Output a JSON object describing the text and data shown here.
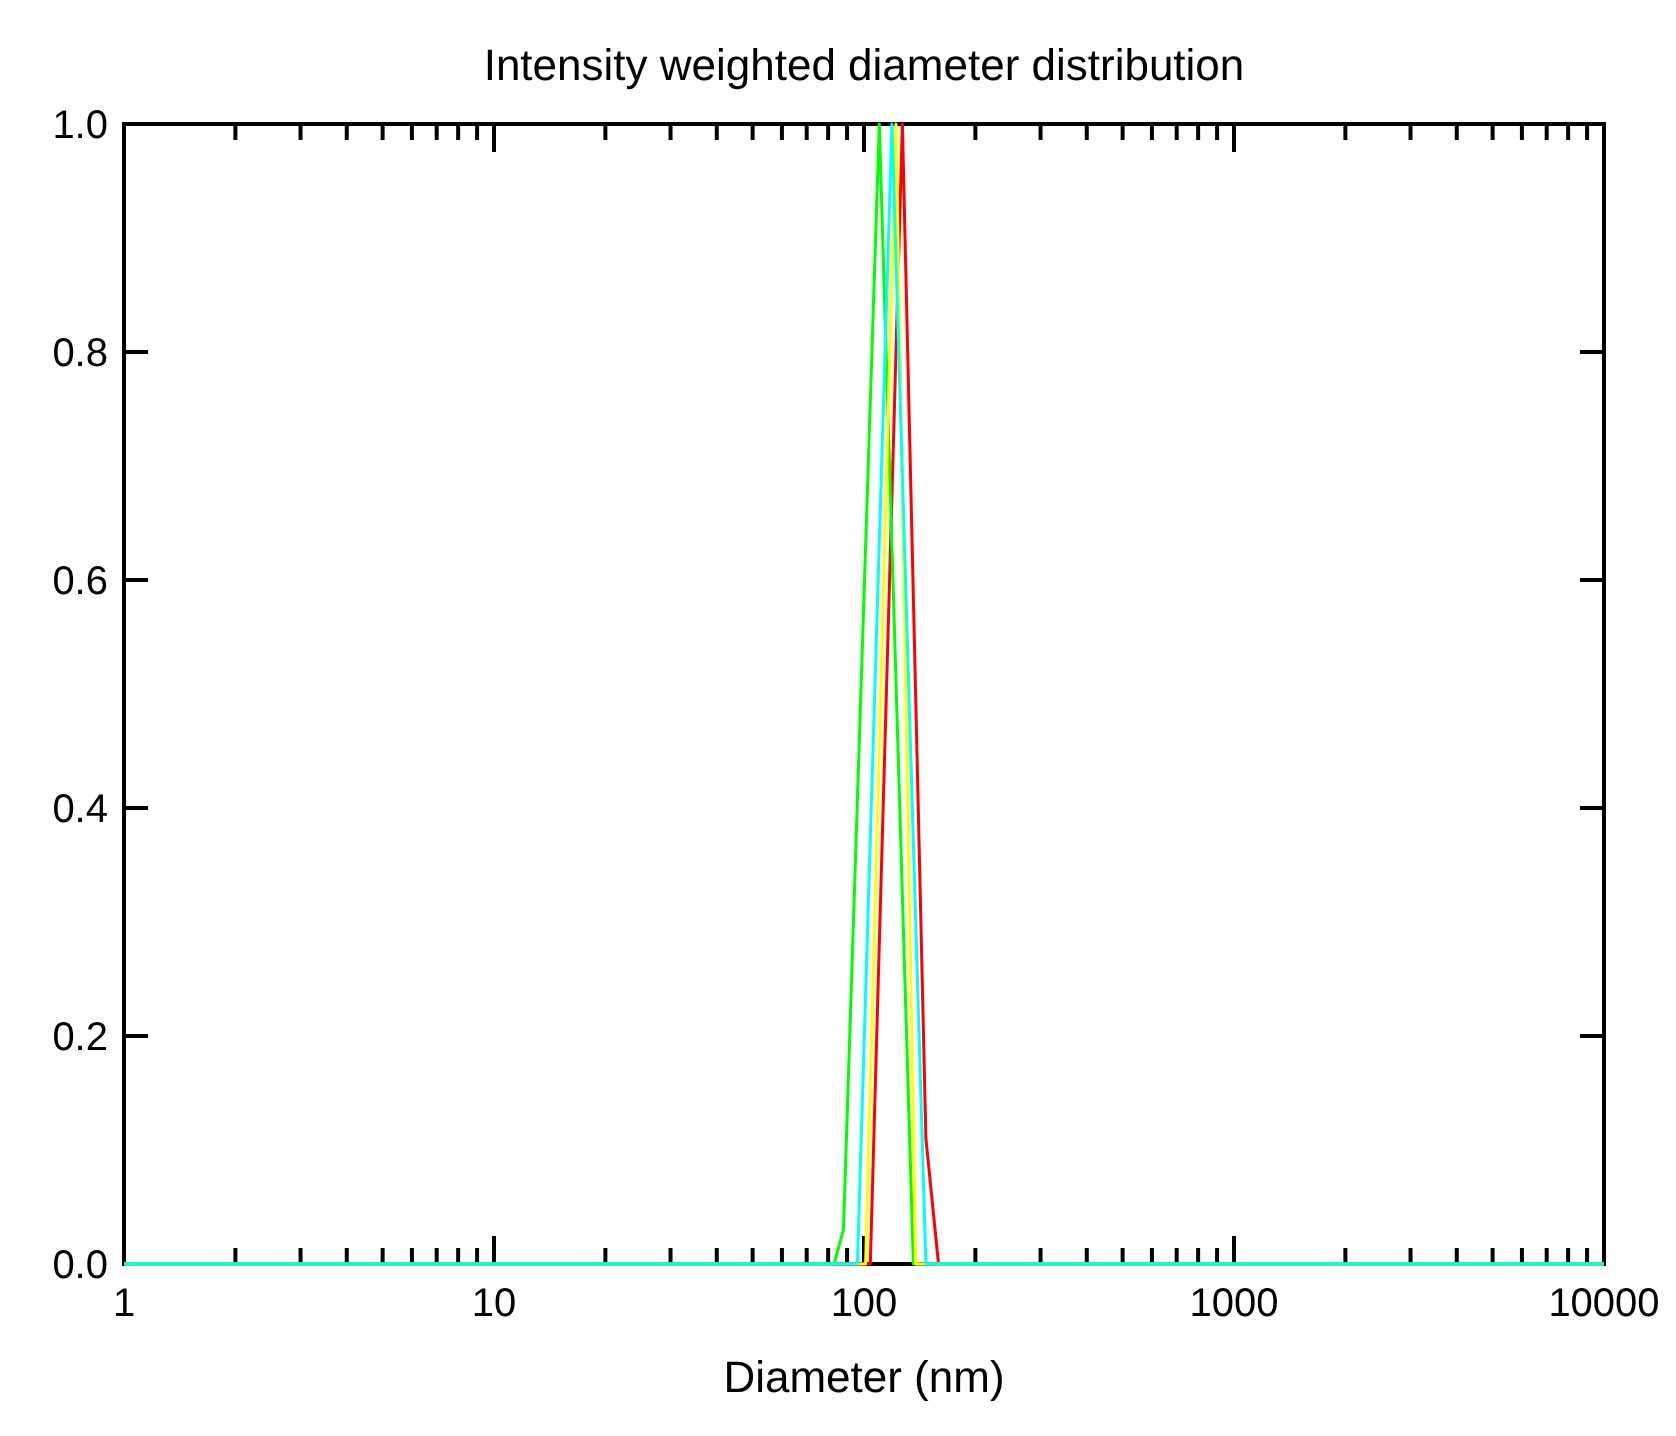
{
  "chart_data": {
    "type": "line",
    "title": "Intensity weighted diameter distribution",
    "xlabel": "Diameter (nm)",
    "log": "x",
    "xlim": [
      1,
      10000
    ],
    "ylim": [
      0,
      1
    ],
    "xticks": [
      1,
      {
        "value": 2,
        "label": null
      },
      {
        "value": 3,
        "label": null
      },
      {
        "value": 4,
        "label": null
      },
      {
        "value": 5,
        "label": null
      },
      {
        "value": 6,
        "label": null
      },
      {
        "value": 7,
        "label": null
      },
      {
        "value": 8,
        "label": null
      },
      {
        "value": 9,
        "label": null
      },
      10,
      {
        "value": 20,
        "label": null
      },
      {
        "value": 30,
        "label": null
      },
      {
        "value": 40,
        "label": null
      },
      {
        "value": 50,
        "label": null
      },
      {
        "value": 60,
        "label": null
      },
      {
        "value": 70,
        "label": null
      },
      {
        "value": 80,
        "label": null
      },
      {
        "value": 90,
        "label": null
      },
      100,
      {
        "value": 200,
        "label": null
      },
      {
        "value": 300,
        "label": null
      },
      {
        "value": 400,
        "label": null
      },
      {
        "value": 500,
        "label": null
      },
      {
        "value": 600,
        "label": null
      },
      {
        "value": 700,
        "label": null
      },
      {
        "value": 800,
        "label": null
      },
      {
        "value": 900,
        "label": null
      },
      1000,
      {
        "value": 2000,
        "label": null
      },
      {
        "value": 3000,
        "label": null
      },
      {
        "value": 4000,
        "label": null
      },
      {
        "value": 5000,
        "label": null
      },
      {
        "value": 6000,
        "label": null
      },
      {
        "value": 7000,
        "label": null
      },
      {
        "value": 8000,
        "label": null
      },
      {
        "value": 9000,
        "label": null
      },
      10000
    ],
    "yticks": [
      {
        "value": 0,
        "label": "0.0"
      },
      0.2,
      0.4,
      0.6,
      0.8,
      {
        "value": 1,
        "label": "1.0"
      }
    ],
    "grid": false,
    "marker": "none",
    "line_style": "solid",
    "series": [
      {
        "color": "#ff0000",
        "x": [
          1,
          104,
          127,
          147,
          159,
          10000
        ],
        "values": [
          0,
          0,
          1,
          0.11,
          0,
          0
        ]
      },
      {
        "color": "#00ff00",
        "x": [
          1,
          83,
          88,
          110,
          136,
          10000
        ],
        "values": [
          0,
          0,
          0.03,
          1,
          0,
          0
        ]
      },
      {
        "color": "#ffff00",
        "x": [
          1,
          101,
          122,
          138,
          10000
        ],
        "values": [
          0,
          0,
          1,
          0,
          0
        ]
      },
      {
        "color": "#00ffff",
        "x": [
          1,
          96,
          119,
          147,
          10000
        ],
        "values": [
          0,
          0,
          1,
          0,
          0
        ]
      }
    ]
  }
}
